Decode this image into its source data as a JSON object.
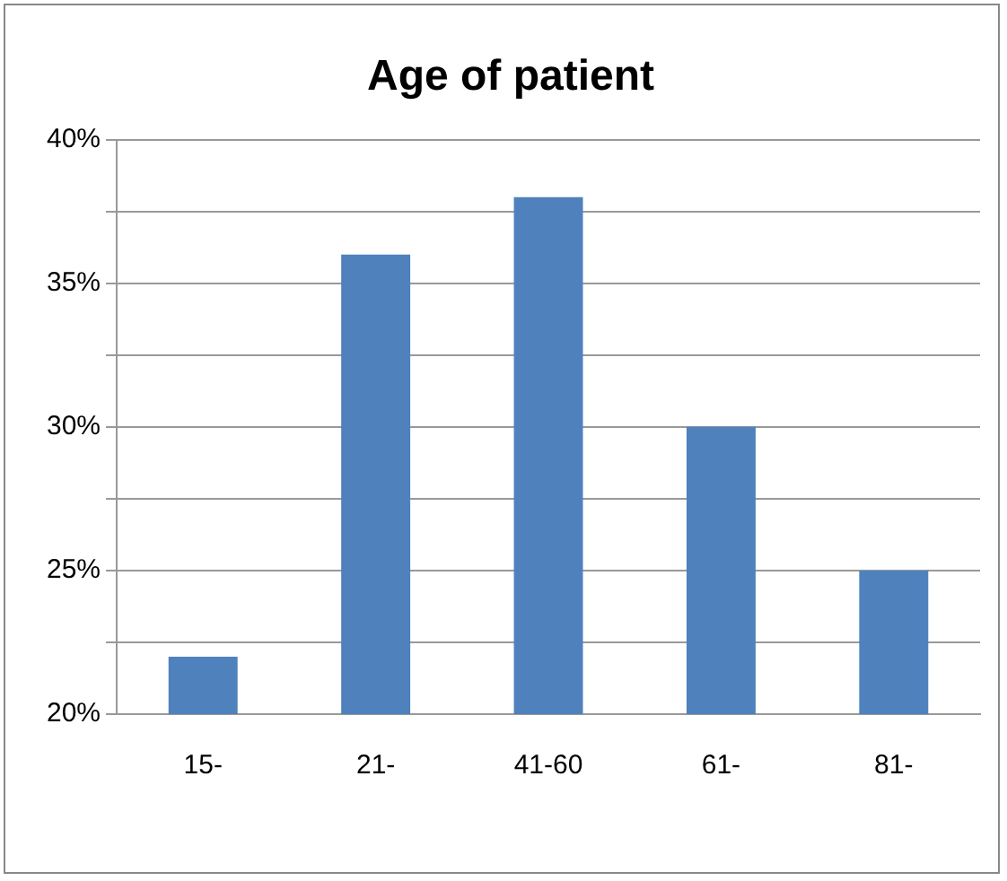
{
  "chart_data": {
    "type": "bar",
    "title": "Age of patient",
    "categories": [
      "15-",
      "21-",
      "41-60",
      "61-",
      "81-"
    ],
    "values": [
      22,
      36,
      38,
      30,
      25
    ],
    "color": "#4f81bd",
    "ylim": [
      20,
      40
    ],
    "yticks": [
      {
        "value": 20,
        "label": "20%"
      },
      {
        "value": 22.5,
        "label": null
      },
      {
        "value": 25,
        "label": "25%"
      },
      {
        "value": 27.5,
        "label": null
      },
      {
        "value": 30,
        "label": "30%"
      },
      {
        "value": 32.5,
        "label": null
      },
      {
        "value": 35,
        "label": "35%"
      },
      {
        "value": 37.5,
        "label": null
      },
      {
        "value": 40,
        "label": "40%"
      }
    ],
    "grid": "y"
  }
}
